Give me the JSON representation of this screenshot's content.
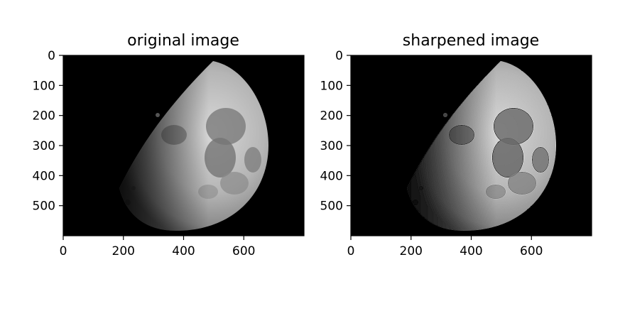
{
  "chart_data": [
    {
      "type": "image",
      "title": "original image",
      "xlabel": "",
      "ylabel": "",
      "image_width": 800,
      "image_height": 600,
      "xlim": [
        0,
        800
      ],
      "ylim": [
        600,
        0
      ],
      "x_ticks": [
        0,
        200,
        400,
        600
      ],
      "x_tick_labels": [
        "0",
        "200",
        "400",
        "600"
      ],
      "y_ticks": [
        0,
        100,
        200,
        300,
        400,
        500
      ],
      "y_tick_labels": [
        "0",
        "100",
        "200",
        "300",
        "400",
        "500"
      ],
      "colormap": "gray",
      "content": "moon-gibbous"
    },
    {
      "type": "image",
      "title": "sharpened image",
      "xlabel": "",
      "ylabel": "",
      "image_width": 800,
      "image_height": 600,
      "xlim": [
        0,
        800
      ],
      "ylim": [
        600,
        0
      ],
      "x_ticks": [
        0,
        200,
        400,
        600
      ],
      "x_tick_labels": [
        "0",
        "200",
        "400",
        "600"
      ],
      "y_ticks": [
        0,
        100,
        200,
        300,
        400,
        500
      ],
      "y_tick_labels": [
        "0",
        "100",
        "200",
        "300",
        "400",
        "500"
      ],
      "colormap": "gray",
      "content": "moon-gibbous-sharpened"
    }
  ]
}
